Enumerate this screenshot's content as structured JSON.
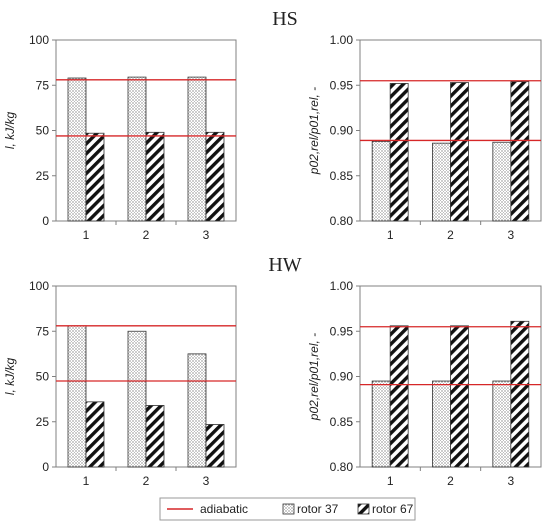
{
  "sections": [
    {
      "title": "HS"
    },
    {
      "title": "HW"
    }
  ],
  "legend": {
    "items": [
      {
        "label": "adiabatic",
        "kind": "line",
        "color": "#d62728"
      },
      {
        "label": "rotor 37",
        "kind": "dots"
      },
      {
        "label": "rotor 67",
        "kind": "hatch"
      }
    ]
  },
  "chart_data": [
    {
      "type": "bar",
      "section": "HS",
      "categories": [
        "1",
        "2",
        "3"
      ],
      "series": [
        {
          "name": "rotor 37",
          "values": [
            79,
            79.5,
            79.5
          ]
        },
        {
          "name": "rotor 67",
          "values": [
            48.5,
            49,
            49
          ]
        }
      ],
      "reference_lines": [
        {
          "name": "adiabatic",
          "y": 78
        },
        {
          "name": "adiabatic",
          "y": 47
        }
      ],
      "ylabel": "l, kJ/kg",
      "ylim": [
        0,
        100
      ],
      "yticks": [
        "0",
        "25",
        "50",
        "75",
        "100"
      ],
      "grid": false
    },
    {
      "type": "bar",
      "section": "HS",
      "categories": [
        "1",
        "2",
        "3"
      ],
      "series": [
        {
          "name": "rotor 37",
          "values": [
            0.888,
            0.886,
            0.887
          ]
        },
        {
          "name": "rotor 67",
          "values": [
            0.952,
            0.953,
            0.954
          ]
        }
      ],
      "reference_lines": [
        {
          "name": "adiabatic",
          "y": 0.955
        },
        {
          "name": "adiabatic",
          "y": 0.889
        }
      ],
      "ylabel": "p02,rel/p01,rel, -",
      "ylim": [
        0.8,
        1.0
      ],
      "yticks": [
        "0.80",
        "0.85",
        "0.90",
        "0.95",
        "1.00"
      ],
      "grid": false
    },
    {
      "type": "bar",
      "section": "HW",
      "categories": [
        "1",
        "2",
        "3"
      ],
      "series": [
        {
          "name": "rotor 37",
          "values": [
            78,
            75,
            62.5
          ]
        },
        {
          "name": "rotor 67",
          "values": [
            36,
            34,
            23.5
          ]
        }
      ],
      "reference_lines": [
        {
          "name": "adiabatic",
          "y": 78
        },
        {
          "name": "adiabatic",
          "y": 47.5
        }
      ],
      "ylabel": "l, kJ/kg",
      "ylim": [
        0,
        100
      ],
      "yticks": [
        "0",
        "25",
        "50",
        "75",
        "100"
      ],
      "grid": false
    },
    {
      "type": "bar",
      "section": "HW",
      "categories": [
        "1",
        "2",
        "3"
      ],
      "series": [
        {
          "name": "rotor 37",
          "values": [
            0.895,
            0.895,
            0.895
          ]
        },
        {
          "name": "rotor 67",
          "values": [
            0.956,
            0.956,
            0.961
          ]
        }
      ],
      "reference_lines": [
        {
          "name": "adiabatic",
          "y": 0.955
        },
        {
          "name": "adiabatic",
          "y": 0.891
        }
      ],
      "ylabel": "p02,rel/p01,rel, -",
      "ylim": [
        0.8,
        1.0
      ],
      "yticks": [
        "0.80",
        "0.85",
        "0.90",
        "0.95",
        "1.00"
      ],
      "grid": false
    }
  ],
  "colors": {
    "adiabatic": "#d62728",
    "axis": "#808080",
    "bar_edge": "#333333"
  }
}
